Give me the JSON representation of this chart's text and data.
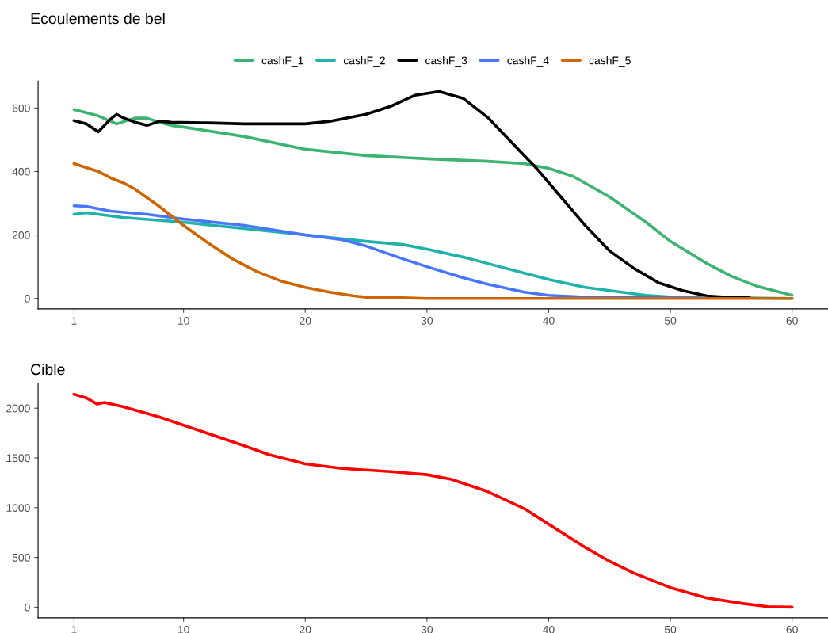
{
  "chart_data": [
    {
      "type": "line",
      "title": "Ecoulements de bel",
      "legend": "top",
      "grid": false,
      "xlim": [
        -1.95,
        62.95
      ],
      "ylim": [
        -33,
        685
      ],
      "xticks": [
        1,
        10,
        20,
        30,
        40,
        50,
        60
      ],
      "yticks": [
        0,
        200,
        400,
        600
      ],
      "series": [
        {
          "name": "cashF_1",
          "color": "#3cb371",
          "x": [
            1,
            3,
            4.5,
            6,
            7,
            8,
            9,
            10,
            15,
            20,
            25,
            30,
            35,
            38,
            40,
            42,
            45,
            48,
            50,
            53,
            55,
            57,
            60
          ],
          "values": [
            595,
            575,
            550,
            568,
            568,
            555,
            545,
            540,
            510,
            470,
            450,
            440,
            432,
            425,
            410,
            385,
            320,
            240,
            180,
            110,
            70,
            40,
            10
          ]
        },
        {
          "name": "cashF_2",
          "color": "#20b2aa",
          "x": [
            1,
            2,
            5,
            10,
            15,
            20,
            25,
            28,
            30,
            33,
            35,
            38,
            40,
            43,
            45,
            48,
            50,
            55,
            60
          ],
          "values": [
            265,
            270,
            255,
            240,
            220,
            200,
            180,
            170,
            155,
            130,
            110,
            80,
            60,
            35,
            25,
            10,
            5,
            2,
            0
          ]
        },
        {
          "name": "cashF_3",
          "color": "#000000",
          "x": [
            1,
            2,
            3,
            4,
            4.5,
            5,
            6,
            7,
            8,
            9,
            12,
            15,
            20,
            22,
            25,
            27,
            29,
            31,
            33,
            35,
            37,
            39,
            41,
            43,
            45,
            47,
            49,
            51,
            53,
            55,
            56.5
          ],
          "values": [
            560,
            550,
            525,
            565,
            580,
            570,
            555,
            545,
            558,
            555,
            553,
            550,
            550,
            558,
            580,
            605,
            640,
            652,
            630,
            570,
            490,
            410,
            320,
            230,
            150,
            95,
            50,
            25,
            8,
            3,
            3
          ]
        },
        {
          "name": "cashF_4",
          "color": "#4876ff",
          "x": [
            1,
            2,
            4,
            7,
            10,
            15,
            20,
            23,
            25,
            28,
            30,
            33,
            35,
            38,
            40,
            43,
            45,
            50,
            53
          ],
          "values": [
            292,
            290,
            275,
            265,
            250,
            230,
            200,
            185,
            165,
            125,
            100,
            65,
            45,
            20,
            10,
            4,
            3,
            2,
            1
          ]
        },
        {
          "name": "cashF_5",
          "color": "#cd6600",
          "x": [
            1,
            3,
            4,
            5,
            6,
            8,
            9,
            10,
            12,
            14,
            16,
            18,
            20,
            22,
            24,
            25,
            28,
            30,
            40,
            60
          ],
          "values": [
            425,
            400,
            380,
            365,
            345,
            290,
            260,
            230,
            175,
            125,
            85,
            55,
            35,
            20,
            8,
            4,
            2,
            0,
            0,
            0
          ]
        }
      ]
    },
    {
      "type": "line",
      "title": "Cible",
      "grid": false,
      "xlim": [
        -1.95,
        62.95
      ],
      "ylim": [
        -107,
        2247
      ],
      "xticks": [
        1,
        10,
        20,
        30,
        40,
        50,
        60
      ],
      "yticks": [
        0,
        500,
        1000,
        1500,
        2000
      ],
      "series": [
        {
          "color": "#ff0000",
          "x": [
            1,
            2,
            2.9,
            3.5,
            5,
            8,
            10,
            15,
            17,
            20,
            23,
            27,
            30,
            32,
            35,
            38,
            40,
            43,
            45,
            47,
            50,
            53,
            56,
            58,
            60
          ],
          "values": [
            2140,
            2104,
            2041,
            2057,
            2015,
            1912,
            1829,
            1622,
            1534,
            1440,
            1394,
            1363,
            1332,
            1285,
            1161,
            990,
            834,
            601,
            461,
            342,
            197,
            93,
            36,
            5,
            0
          ]
        }
      ]
    }
  ]
}
